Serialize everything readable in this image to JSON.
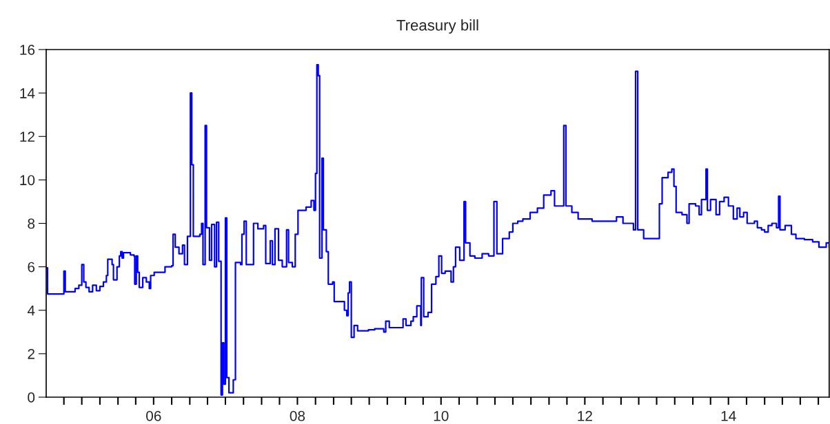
{
  "chart_data": {
    "type": "step",
    "title": "Treasury bill",
    "x": [
      "2005-01-01",
      "2005-01-08",
      "2005-03-27",
      "2005-04-01",
      "2005-04-08",
      "2005-05-28",
      "2005-06-16",
      "2005-07-01",
      "2005-07-11",
      "2005-07-22",
      "2005-08-07",
      "2005-08-25",
      "2005-09-13",
      "2005-10-01",
      "2005-10-19",
      "2005-11-03",
      "2005-11-10",
      "2005-12-02",
      "2005-12-09",
      "2005-12-27",
      "2006-01-08",
      "2006-01-15",
      "2006-01-22",
      "2006-01-29",
      "2006-03-05",
      "2006-03-23",
      "2006-03-27",
      "2006-04-04",
      "2006-04-11",
      "2006-04-19",
      "2006-05-07",
      "2006-05-25",
      "2006-06-09",
      "2006-06-16",
      "2006-07-04",
      "2006-08-10",
      "2006-08-28",
      "2006-10-01",
      "2006-10-08",
      "2006-10-19",
      "2006-11-07",
      "2006-11-25",
      "2006-12-05",
      "2006-12-20",
      "2007-01-04",
      "2007-01-11",
      "2007-01-19",
      "2007-02-21",
      "2007-03-02",
      "2007-03-09",
      "2007-03-20",
      "2007-03-27",
      "2007-04-11",
      "2007-04-22",
      "2007-05-07",
      "2007-05-17",
      "2007-05-28",
      "2007-06-09",
      "2007-06-16",
      "2007-06-23",
      "2007-07-01",
      "2007-07-08",
      "2007-07-19",
      "2007-08-10",
      "2007-08-21",
      "2007-09-16",
      "2007-09-23",
      "2007-10-04",
      "2007-10-15",
      "2007-11-14",
      "2007-11-21",
      "2007-12-13",
      "2008-01-11",
      "2008-01-22",
      "2008-02-14",
      "2008-02-25",
      "2008-03-09",
      "2008-03-27",
      "2008-04-15",
      "2008-05-07",
      "2008-05-17",
      "2008-06-05",
      "2008-06-20",
      "2008-07-04",
      "2008-08-14",
      "2008-09-09",
      "2008-09-23",
      "2008-10-01",
      "2008-10-08",
      "2008-10-15",
      "2008-10-22",
      "2008-11-03",
      "2008-11-10",
      "2008-11-25",
      "2008-12-05",
      "2008-12-27",
      "2009-01-04",
      "2009-01-26",
      "2009-02-25",
      "2009-03-09",
      "2009-03-16",
      "2009-03-23",
      "2009-04-01",
      "2009-04-15",
      "2009-05-03",
      "2009-06-27",
      "2009-07-29",
      "2009-09-13",
      "2009-09-23",
      "2009-10-11",
      "2009-12-02",
      "2009-12-20",
      "2010-01-04",
      "2010-01-29",
      "2010-02-10",
      "2010-02-28",
      "2010-03-20",
      "2010-03-23",
      "2010-04-04",
      "2010-04-26",
      "2010-05-14",
      "2010-06-05",
      "2010-06-20",
      "2010-07-04",
      "2010-07-22",
      "2010-08-21",
      "2010-09-02",
      "2010-09-13",
      "2010-10-04",
      "2010-10-26",
      "2010-11-03",
      "2010-11-25",
      "2010-12-20",
      "2011-01-26",
      "2011-02-28",
      "2011-03-27",
      "2011-04-11",
      "2011-05-10",
      "2011-06-13",
      "2011-07-01",
      "2011-07-26",
      "2011-08-21",
      "2011-09-27",
      "2011-11-03",
      "2011-12-05",
      "2012-01-11",
      "2012-01-29",
      "2012-03-02",
      "2012-03-16",
      "2012-03-27",
      "2012-04-26",
      "2012-05-28",
      "2012-08-07",
      "2012-10-15",
      "2012-12-09",
      "2013-01-11",
      "2013-03-05",
      "2013-03-16",
      "2013-03-27",
      "2013-04-26",
      "2013-07-04",
      "2013-07-15",
      "2013-07-29",
      "2013-08-28",
      "2013-09-16",
      "2013-09-27",
      "2013-10-08",
      "2013-11-07",
      "2013-12-02",
      "2013-12-13",
      "2014-01-15",
      "2014-02-02",
      "2014-02-14",
      "2014-03-09",
      "2014-03-16",
      "2014-04-01",
      "2014-04-29",
      "2014-05-17",
      "2014-06-09",
      "2014-07-01",
      "2014-07-26",
      "2014-08-14",
      "2014-08-28",
      "2014-09-16",
      "2014-10-04",
      "2014-11-10",
      "2014-11-25",
      "2014-12-16",
      "2015-01-01",
      "2015-01-19",
      "2015-02-07",
      "2015-02-21",
      "2015-03-02",
      "2015-03-13",
      "2015-03-20",
      "2015-04-15",
      "2015-05-17",
      "2015-06-09",
      "2015-07-22",
      "2015-09-02",
      "2015-10-04",
      "2015-11-10",
      "2015-11-25"
    ],
    "series": [
      {
        "color": "#0000ff",
        "values": [
          5.95,
          4.75,
          4.75,
          5.8,
          4.85,
          5.0,
          5.15,
          6.1,
          5.3,
          5.05,
          4.85,
          5.15,
          4.9,
          5.1,
          5.3,
          5.6,
          6.35,
          6.1,
          5.4,
          6.0,
          6.5,
          6.7,
          6.4,
          6.65,
          6.55,
          6.5,
          5.2,
          6.5,
          5.75,
          5.05,
          5.5,
          5.3,
          5.0,
          5.6,
          5.75,
          5.75,
          6.0,
          6.05,
          7.5,
          6.9,
          6.6,
          7.0,
          6.1,
          7.4,
          14.0,
          10.7,
          7.4,
          7.5,
          8.0,
          6.1,
          12.5,
          7.8,
          6.3,
          7.95,
          6.0,
          8.05,
          6.25,
          0.1,
          2.5,
          0.6,
          8.25,
          0.9,
          0.2,
          0.8,
          6.2,
          6.1,
          7.5,
          8.1,
          6.1,
          6.1,
          8.0,
          7.75,
          7.9,
          6.15,
          7.2,
          6.1,
          7.75,
          6.3,
          6.0,
          7.7,
          6.2,
          6.0,
          7.5,
          8.6,
          8.75,
          9.05,
          8.6,
          10.3,
          15.3,
          14.8,
          6.4,
          11.0,
          7.7,
          6.7,
          5.2,
          5.3,
          4.4,
          4.4,
          4.0,
          3.75,
          4.8,
          5.3,
          2.75,
          3.3,
          3.05,
          3.1,
          3.15,
          3.0,
          3.5,
          3.2,
          3.2,
          3.6,
          3.3,
          3.5,
          3.7,
          4.2,
          3.3,
          5.5,
          3.7,
          3.9,
          5.2,
          5.55,
          6.5,
          5.7,
          5.8,
          5.3,
          6.0,
          6.9,
          6.3,
          9.0,
          7.1,
          6.5,
          6.4,
          6.6,
          6.5,
          9.0,
          6.6,
          7.3,
          7.6,
          8.0,
          8.1,
          8.2,
          8.5,
          8.7,
          9.3,
          9.5,
          8.8,
          8.8,
          12.5,
          8.8,
          8.5,
          8.2,
          8.1,
          8.1,
          8.3,
          8.0,
          7.7,
          15.0,
          7.7,
          7.3,
          7.3,
          8.9,
          10.1,
          10.35,
          10.5,
          9.7,
          8.5,
          8.4,
          8.0,
          8.9,
          8.8,
          8.4,
          9.1,
          10.5,
          8.6,
          9.1,
          8.4,
          9.0,
          9.2,
          8.8,
          8.2,
          8.7,
          8.3,
          8.5,
          8.0,
          8.1,
          7.8,
          7.7,
          7.6,
          7.9,
          8.0,
          8.0,
          7.8,
          9.25,
          7.7,
          7.9,
          7.5,
          7.3,
          7.25,
          7.15,
          6.9,
          7.1,
          6.9
        ]
      }
    ],
    "xlim": [
      "2005-01-01",
      "2015-11-25"
    ],
    "ylim": [
      0,
      16
    ],
    "yticks": [
      0,
      2,
      4,
      6,
      8,
      10,
      12,
      14,
      16
    ],
    "xticks": [
      {
        "value": "2006-07-01",
        "label": "06"
      },
      {
        "value": "2008-07-01",
        "label": "08"
      },
      {
        "value": "2010-07-01",
        "label": "10"
      },
      {
        "value": "2012-07-01",
        "label": "12"
      },
      {
        "value": "2014-07-01",
        "label": "14"
      },
      {
        "value": "2005-04-01",
        "label": null
      },
      {
        "value": "2005-07-01",
        "label": null
      },
      {
        "value": "2005-10-01",
        "label": null
      },
      {
        "value": "2006-01-01",
        "label": null
      },
      {
        "value": "2006-04-01",
        "label": null
      },
      {
        "value": "2006-07-01",
        "label": null
      },
      {
        "value": "2006-10-01",
        "label": null
      },
      {
        "value": "2007-01-01",
        "label": null
      },
      {
        "value": "2007-04-01",
        "label": null
      },
      {
        "value": "2007-07-01",
        "label": null
      },
      {
        "value": "2007-10-01",
        "label": null
      },
      {
        "value": "2008-01-01",
        "label": null
      },
      {
        "value": "2008-04-01",
        "label": null
      },
      {
        "value": "2008-07-01",
        "label": null
      },
      {
        "value": "2008-10-01",
        "label": null
      },
      {
        "value": "2009-01-01",
        "label": null
      },
      {
        "value": "2009-04-01",
        "label": null
      },
      {
        "value": "2009-07-01",
        "label": null
      },
      {
        "value": "2009-10-01",
        "label": null
      },
      {
        "value": "2010-01-01",
        "label": null
      },
      {
        "value": "2010-04-01",
        "label": null
      },
      {
        "value": "2010-07-01",
        "label": null
      },
      {
        "value": "2010-10-01",
        "label": null
      },
      {
        "value": "2011-01-01",
        "label": null
      },
      {
        "value": "2011-04-01",
        "label": null
      },
      {
        "value": "2011-07-01",
        "label": null
      },
      {
        "value": "2011-10-01",
        "label": null
      },
      {
        "value": "2012-01-01",
        "label": null
      },
      {
        "value": "2012-04-01",
        "label": null
      },
      {
        "value": "2012-07-01",
        "label": null
      },
      {
        "value": "2012-10-01",
        "label": null
      },
      {
        "value": "2013-01-01",
        "label": null
      },
      {
        "value": "2013-04-01",
        "label": null
      },
      {
        "value": "2013-07-01",
        "label": null
      },
      {
        "value": "2013-10-01",
        "label": null
      },
      {
        "value": "2014-01-01",
        "label": null
      },
      {
        "value": "2014-04-01",
        "label": null
      },
      {
        "value": "2014-07-01",
        "label": null
      },
      {
        "value": "2014-10-01",
        "label": null
      },
      {
        "value": "2015-01-01",
        "label": null
      },
      {
        "value": "2015-04-01",
        "label": null
      },
      {
        "value": "2015-07-01",
        "label": null
      },
      {
        "value": "2015-10-01",
        "label": null
      }
    ],
    "grid": false,
    "legend": false
  }
}
